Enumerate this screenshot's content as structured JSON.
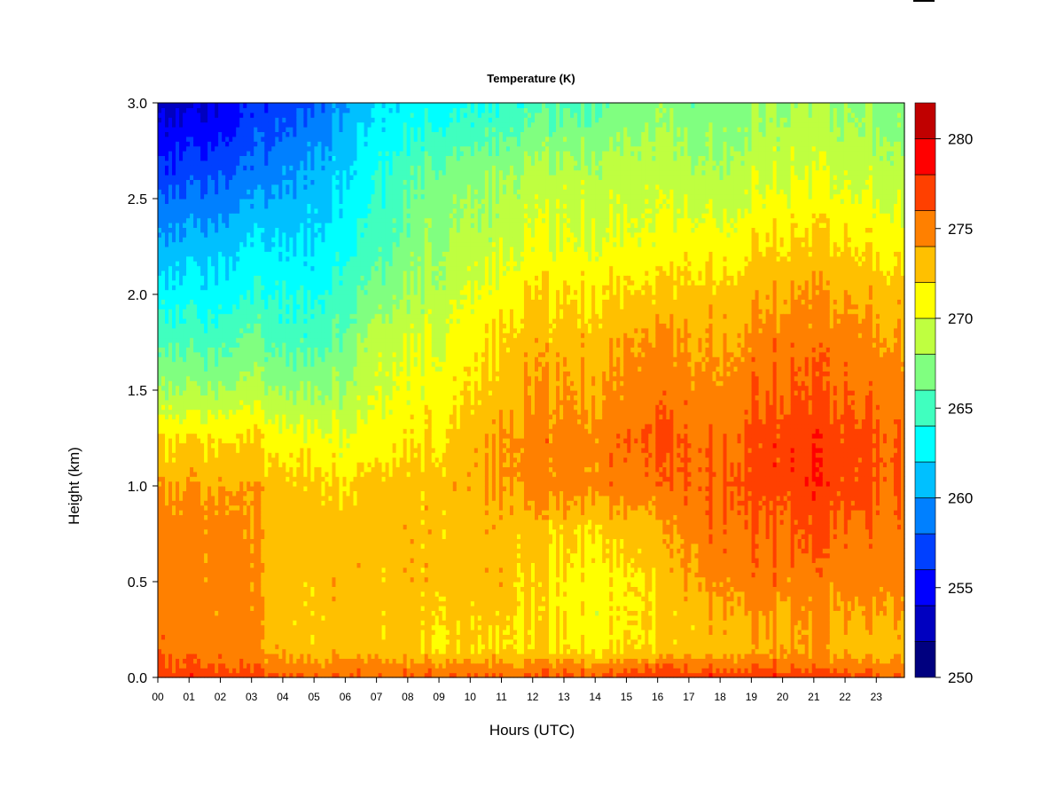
{
  "chart_data": {
    "type": "heatmap",
    "title": "Temperature (K)",
    "xlabel": "Hours (UTC)",
    "ylabel": "Height (km)",
    "x_ticks": [
      "00",
      "01",
      "02",
      "03",
      "04",
      "05",
      "06",
      "07",
      "08",
      "09",
      "10",
      "11",
      "12",
      "13",
      "14",
      "15",
      "16",
      "17",
      "18",
      "19",
      "20",
      "21",
      "22",
      "23"
    ],
    "y_ticks": [
      "0.0",
      "0.5",
      "1.0",
      "1.5",
      "2.0",
      "2.5",
      "3.0"
    ],
    "xlim": [
      0,
      23.9
    ],
    "ylim": [
      0,
      3.0
    ],
    "colorbar": {
      "range": [
        250,
        282
      ],
      "tick_labels": [
        "250",
        "255",
        "260",
        "265",
        "270",
        "275",
        "280"
      ],
      "tick_values": [
        250,
        255,
        260,
        265,
        270,
        275,
        280
      ],
      "levels": [
        250,
        252,
        254,
        256,
        258,
        260,
        262,
        264,
        266,
        268,
        270,
        272,
        274,
        276,
        278,
        280,
        282
      ],
      "colors": [
        "#00007f",
        "#0000c0",
        "#0000ff",
        "#0040ff",
        "#0080ff",
        "#00c0ff",
        "#00ffff",
        "#40ffbf",
        "#80ff80",
        "#bfff40",
        "#ffff00",
        "#ffc000",
        "#ff8000",
        "#ff4000",
        "#ff0000",
        "#c00000",
        "#800000"
      ]
    },
    "heights_km": [
      0.0,
      0.05,
      0.15,
      0.3,
      0.5,
      0.8,
      1.0,
      1.25,
      1.5,
      1.8,
      2.0,
      2.3,
      2.6,
      3.0
    ],
    "columns": [
      {
        "hour": 0,
        "temps": [
          277.5,
          276.5,
          275.5,
          275,
          275,
          275,
          274,
          272,
          268,
          265,
          263,
          260,
          257,
          253
        ]
      },
      {
        "hour": 2,
        "temps": [
          277.5,
          276,
          275,
          275,
          275,
          275,
          274,
          272,
          268,
          265,
          263,
          261,
          258,
          254
        ]
      },
      {
        "hour": 3,
        "temps": [
          277,
          276,
          274.5,
          274.5,
          274.5,
          274,
          274,
          272,
          269,
          266,
          264,
          262,
          259,
          256
        ]
      },
      {
        "hour": 4,
        "temps": [
          276.5,
          275,
          273.5,
          273,
          273,
          273.5,
          273,
          271,
          268,
          265,
          264,
          262,
          260,
          257
        ]
      },
      {
        "hour": 5,
        "temps": [
          276,
          275,
          273,
          273,
          273,
          273,
          273,
          271,
          268,
          265,
          264,
          262,
          261,
          258
        ]
      },
      {
        "hour": 6,
        "temps": [
          276,
          275,
          273,
          273,
          273,
          273,
          272,
          270,
          268,
          266,
          265,
          263,
          262,
          260
        ]
      },
      {
        "hour": 7,
        "temps": [
          276,
          275,
          273,
          273,
          273,
          273,
          273,
          271,
          270,
          269,
          267,
          265,
          264,
          262
        ]
      },
      {
        "hour": 9,
        "temps": [
          276,
          275,
          272,
          272.5,
          273,
          273,
          273,
          272,
          271,
          270,
          269,
          268,
          267,
          263
        ]
      },
      {
        "hour": 11,
        "temps": [
          276,
          275,
          272,
          272.5,
          273,
          273,
          274,
          274,
          273,
          272,
          271,
          269,
          268,
          264
        ]
      },
      {
        "hour": 12,
        "temps": [
          276,
          275,
          272,
          272,
          272,
          273,
          275,
          275,
          274,
          273,
          272,
          270,
          269,
          265
        ]
      },
      {
        "hour": 14,
        "temps": [
          276.5,
          275,
          271.5,
          271,
          271,
          272.5,
          275,
          275,
          274,
          273,
          272,
          270,
          269,
          266
        ]
      },
      {
        "hour": 16,
        "temps": [
          277,
          275.5,
          272,
          272,
          272,
          273,
          275,
          276,
          275,
          274,
          272,
          270,
          269,
          267
        ]
      },
      {
        "hour": 17,
        "temps": [
          277.5,
          276,
          273,
          273,
          274,
          275,
          276,
          276,
          275,
          274,
          273,
          271,
          269,
          267
        ]
      },
      {
        "hour": 18,
        "temps": [
          278,
          276,
          273,
          274,
          275,
          276,
          276.5,
          276,
          275,
          274,
          273,
          271,
          269,
          267
        ]
      },
      {
        "hour": 20,
        "temps": [
          277.5,
          276,
          274,
          274,
          275,
          276,
          277,
          277,
          276,
          275,
          274,
          272,
          270,
          268
        ]
      },
      {
        "hour": 21,
        "temps": [
          277,
          275.5,
          274,
          274,
          275,
          276.5,
          277.5,
          277.5,
          276,
          275,
          274,
          272,
          270,
          268
        ]
      },
      {
        "hour": 22,
        "temps": [
          277,
          275.5,
          273.5,
          274,
          275,
          276,
          277,
          277,
          276,
          275,
          274,
          272,
          270,
          268
        ]
      },
      {
        "hour": 23.9,
        "temps": [
          276.5,
          275,
          273,
          274,
          275,
          275.5,
          276,
          276,
          275,
          274,
          273,
          271,
          269,
          267
        ]
      }
    ]
  }
}
